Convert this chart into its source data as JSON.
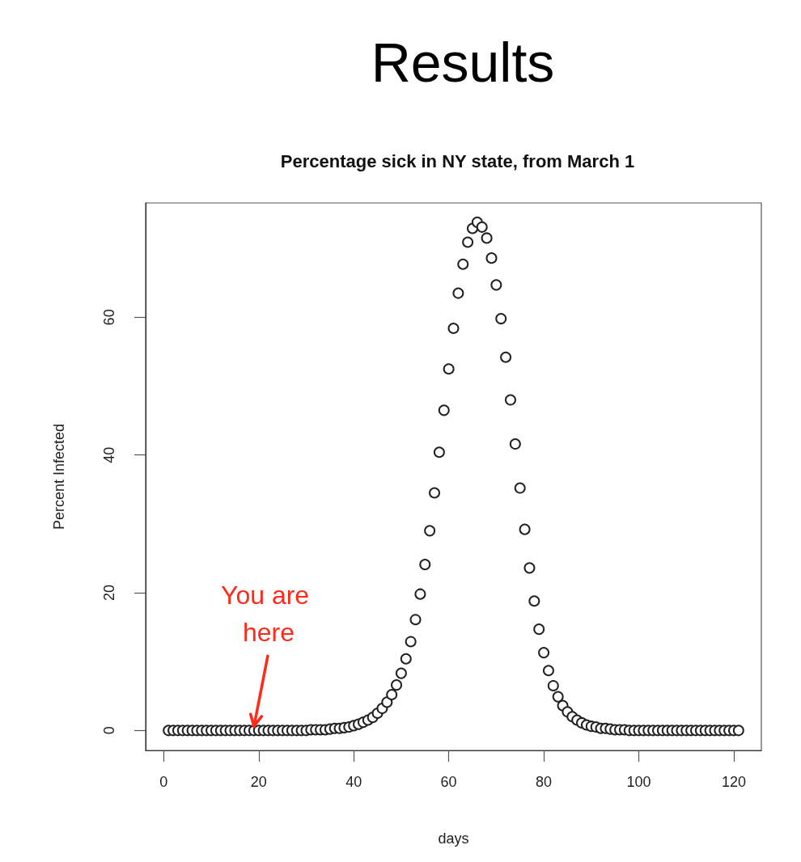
{
  "chart_data": {
    "type": "scatter",
    "title": "Results",
    "subtitle": "Percentage sick in NY state, from March 1",
    "xlabel": "days",
    "ylabel": "Percent Infected",
    "x": [
      1,
      2,
      3,
      4,
      5,
      6,
      7,
      8,
      9,
      10,
      11,
      12,
      13,
      14,
      15,
      16,
      17,
      18,
      19,
      20,
      21,
      22,
      23,
      24,
      25,
      26,
      27,
      28,
      29,
      30,
      31,
      32,
      33,
      34,
      35,
      36,
      37,
      38,
      39,
      40,
      41,
      42,
      43,
      44,
      45,
      46,
      47,
      48,
      49,
      50,
      51,
      52,
      53,
      54,
      55,
      56,
      57,
      58,
      59,
      60,
      61,
      62,
      63,
      64,
      65,
      66,
      67,
      68,
      69,
      70,
      71,
      72,
      73,
      74,
      75,
      76,
      77,
      78,
      79,
      80,
      81,
      82,
      83,
      84,
      85,
      86,
      87,
      88,
      89,
      90,
      91,
      92,
      93,
      94,
      95,
      96,
      97,
      98,
      99,
      100,
      101,
      102,
      103,
      104,
      105,
      106,
      107,
      108,
      109,
      110,
      111,
      112,
      113,
      114,
      115,
      116,
      117,
      118,
      119,
      120,
      121
    ],
    "series": [
      {
        "color": "#222222",
        "values": [
          0,
          0,
          0,
          0,
          0,
          0,
          0,
          0,
          0,
          0,
          0,
          0,
          0,
          0,
          0,
          0,
          0,
          0,
          0,
          0,
          0,
          0,
          0,
          0,
          0,
          0,
          0,
          0,
          0,
          0,
          0.1,
          0.1,
          0.1,
          0.1,
          0.2,
          0.3,
          0.3,
          0.4,
          0.5,
          0.7,
          0.9,
          1.2,
          1.5,
          1.9,
          2.5,
          3.2,
          4.1,
          5.2,
          6.6,
          8.3,
          10.4,
          12.9,
          16.1,
          19.8,
          24.1,
          29.0,
          34.5,
          40.4,
          46.5,
          52.5,
          58.4,
          63.5,
          67.7,
          70.9,
          72.9,
          73.8,
          73.1,
          71.5,
          68.6,
          64.7,
          59.8,
          54.2,
          48.0,
          41.6,
          35.2,
          29.2,
          23.6,
          18.8,
          14.7,
          11.3,
          8.7,
          6.5,
          4.9,
          3.6,
          2.7,
          2.0,
          1.5,
          1.1,
          0.8,
          0.6,
          0.5,
          0.3,
          0.3,
          0.2,
          0.1,
          0.1,
          0.1,
          0,
          0,
          0,
          0,
          0,
          0,
          0,
          0,
          0,
          0,
          0,
          0,
          0,
          0,
          0,
          0,
          0,
          0,
          0,
          0,
          0,
          0,
          0,
          0
        ]
      }
    ],
    "xlim": [
      -3.8,
      125.8
    ],
    "xticks": [
      0,
      20,
      40,
      60,
      80,
      100,
      120
    ],
    "ylim": [
      -2.9,
      76.6
    ],
    "yticks": [
      0,
      20,
      40,
      60
    ],
    "marker": "circle",
    "annotations": [
      {
        "text": "You are here",
        "x": 19,
        "y": 0
      }
    ]
  }
}
